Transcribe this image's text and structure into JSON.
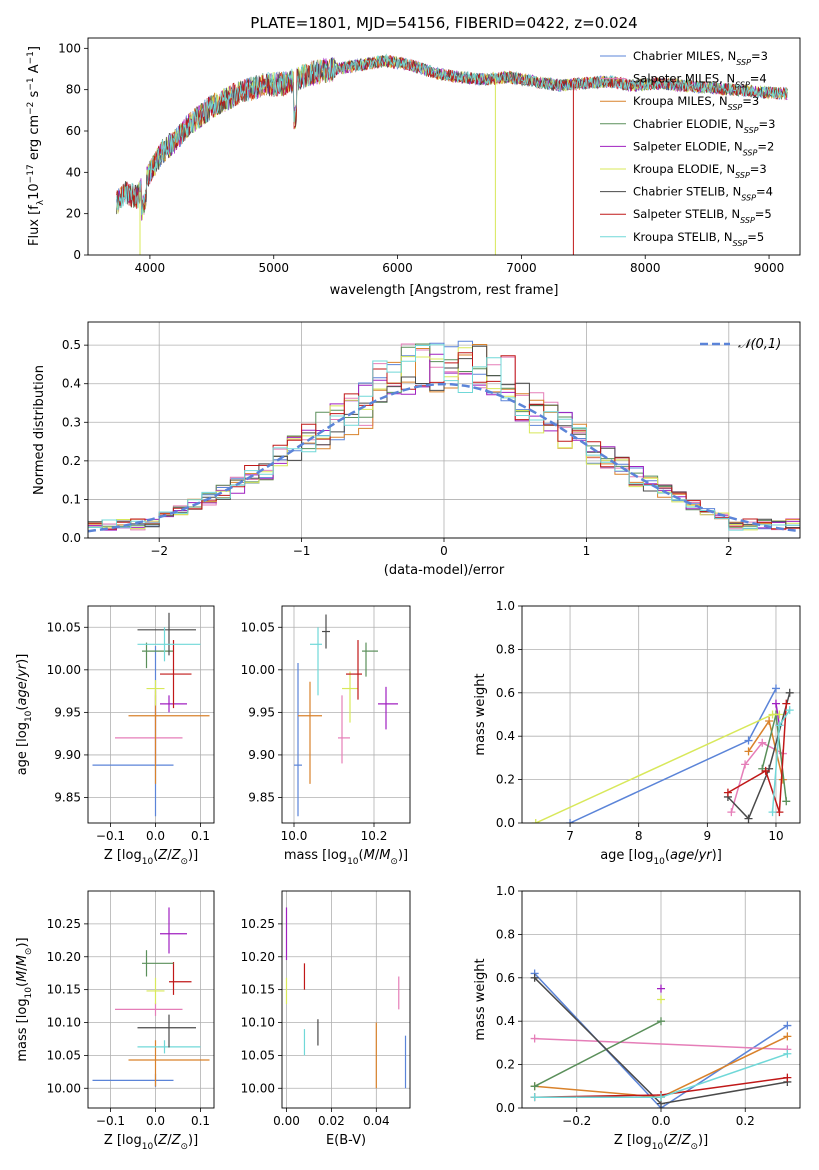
{
  "figure_title": "PLATE=1801, MJD=54156, FIBERID=0422, z=0.024",
  "colors": {
    "Chabrier MILES": "#5b84d8",
    "Salpeter MILES": "#e57eb8",
    "Kroupa MILES": "#d9822b",
    "Chabrier ELODIE": "#5a8f5a",
    "Salpeter ELODIE": "#a020c0",
    "Kroupa ELODIE": "#d8e85a",
    "Chabrier STELIB": "#4a4a4a",
    "Salpeter STELIB": "#c01818",
    "Kroupa STELIB": "#70d8d8"
  },
  "chart_data": [
    {
      "id": "spectrum",
      "type": "line",
      "xlabel": "wavelength [Angstrom, rest frame]",
      "ylabel": "Flux [f_λ 10^-17 erg cm^-2 s^-1 A^-1]",
      "xlim": [
        3500,
        9250
      ],
      "ylim": [
        0,
        105
      ],
      "xticks": [
        4000,
        5000,
        6000,
        7000,
        8000,
        9000
      ],
      "yticks": [
        0,
        20,
        40,
        60,
        80,
        100
      ],
      "legend": [
        "Chabrier MILES, N_SSP=3",
        "Salpeter MILES, N_SSP=4",
        "Kroupa MILES, N_SSP=3",
        "Chabrier ELODIE, N_SSP=3",
        "Salpeter ELODIE, N_SSP=2",
        "Kroupa ELODIE, N_SSP=3",
        "Chabrier STELIB, N_SSP=4",
        "Salpeter STELIB, N_SSP=5",
        "Kroupa STELIB, N_SSP=5"
      ],
      "legend_position": "upper right",
      "continuum": {
        "x": [
          3730,
          3800,
          3900,
          4000,
          4100,
          4200,
          4300,
          4500,
          4700,
          4900,
          5100,
          5300,
          5500,
          5700,
          5900,
          6100,
          6300,
          6500,
          6700,
          6900,
          7100,
          7300,
          7500,
          7700,
          7900,
          8100,
          8300,
          8500,
          8700,
          8900,
          9150
        ],
        "y": [
          25,
          30,
          28,
          40,
          50,
          55,
          62,
          72,
          78,
          82,
          83,
          88,
          90,
          92,
          94,
          92,
          88,
          86,
          85,
          86,
          84,
          82,
          83,
          84,
          82,
          83,
          82,
          81,
          80,
          79,
          78
        ]
      },
      "dropouts": [
        {
          "x": 3920,
          "y": 0,
          "series": "Kroupa ELODIE"
        },
        {
          "x": 6790,
          "y": 0,
          "series": "Kroupa ELODIE"
        },
        {
          "x": 7420,
          "y": 0,
          "series": "Salpeter STELIB"
        }
      ],
      "grid": false
    },
    {
      "id": "residuals",
      "type": "histogram",
      "xlabel": "(data-model)/error",
      "ylabel": "Normed distribution",
      "xlim": [
        -2.5,
        2.5
      ],
      "ylim": [
        0,
        0.56
      ],
      "xticks": [
        -2,
        -1,
        0,
        1,
        2
      ],
      "yticks": [
        0.0,
        0.1,
        0.2,
        0.3,
        0.4,
        0.5
      ],
      "legend": [
        "𝒩(0,1)"
      ],
      "legend_position": "upper right",
      "gaussian": {
        "mean": 0,
        "sigma": 1,
        "style": "dashed",
        "color": "#5b84d8"
      },
      "grid": true
    },
    {
      "id": "age-vs-Z",
      "type": "errorbar",
      "xlabel": "Z [log10(Z/Z⊙)]",
      "ylabel": "age [log10(age/yr)]",
      "xlim": [
        -0.15,
        0.13
      ],
      "ylim": [
        9.82,
        10.075
      ],
      "xticks": [
        -0.1,
        0.0,
        0.1
      ],
      "yticks": [
        9.85,
        9.9,
        9.95,
        10.0,
        10.05
      ],
      "points": [
        {
          "series": "Chabrier MILES",
          "x": 0.0,
          "xerr": [
            0.14,
            0.04
          ],
          "y": 9.888,
          "yerr": [
            0.06,
            0.14
          ]
        },
        {
          "series": "Salpeter MILES",
          "x": 0.0,
          "xerr": [
            0.09,
            0.06
          ],
          "y": 9.92,
          "yerr": [
            0.03,
            0.05
          ]
        },
        {
          "series": "Kroupa MILES",
          "x": 0.0,
          "xerr": [
            0.06,
            0.12
          ],
          "y": 9.946,
          "yerr": [
            0.08,
            0.03
          ]
        },
        {
          "series": "Chabrier ELODIE",
          "x": -0.02,
          "xerr": [
            0.01,
            0.06
          ],
          "y": 10.022,
          "yerr": [
            0.02,
            0.01
          ]
        },
        {
          "series": "Salpeter ELODIE",
          "x": 0.03,
          "xerr": [
            0.02,
            0.04
          ],
          "y": 9.96,
          "yerr": [
            0.01,
            0.01
          ]
        },
        {
          "series": "Kroupa ELODIE",
          "x": 0.0,
          "xerr": [
            0.02,
            0.02
          ],
          "y": 9.978,
          "yerr": [
            0.02,
            0.01
          ]
        },
        {
          "series": "Chabrier STELIB",
          "x": 0.03,
          "xerr": [
            0.07,
            0.06
          ],
          "y": 10.047,
          "yerr": [
            0.03,
            0.02
          ]
        },
        {
          "series": "Salpeter STELIB",
          "x": 0.04,
          "xerr": [
            0.03,
            0.04
          ],
          "y": 9.995,
          "yerr": [
            0.04,
            0.04
          ]
        },
        {
          "series": "Kroupa STELIB",
          "x": 0.02,
          "xerr": [
            0.06,
            0.08
          ],
          "y": 10.03,
          "yerr": [
            0.02,
            0.02
          ]
        }
      ],
      "grid": true
    },
    {
      "id": "age-vs-mass",
      "type": "errorbar",
      "xlabel": "mass [log10(M/M⊙)]",
      "ylabel": "",
      "xlim": [
        9.97,
        10.29
      ],
      "ylim": [
        9.82,
        10.075
      ],
      "xticks": [
        10.0,
        10.2
      ],
      "yticks": [
        9.85,
        9.9,
        9.95,
        10.0,
        10.05
      ],
      "points": [
        {
          "series": "Chabrier MILES",
          "x": 10.01,
          "xerr": [
            0.01,
            0.01
          ],
          "y": 9.888,
          "yerr": [
            0.06,
            0.12
          ]
        },
        {
          "series": "Kroupa MILES",
          "x": 10.04,
          "xerr": [
            0.03,
            0.03
          ],
          "y": 9.946,
          "yerr": [
            0.08,
            0.04
          ]
        },
        {
          "series": "Salpeter MILES",
          "x": 10.12,
          "xerr": [
            0.01,
            0.02
          ],
          "y": 9.92,
          "yerr": [
            0.03,
            0.05
          ]
        },
        {
          "series": "Kroupa STELIB",
          "x": 10.06,
          "xerr": [
            0.02,
            0.01
          ],
          "y": 10.03,
          "yerr": [
            0.06,
            0.02
          ]
        },
        {
          "series": "Chabrier STELIB",
          "x": 10.08,
          "xerr": [
            0.01,
            0.01
          ],
          "y": 10.045,
          "yerr": [
            0.02,
            0.02
          ]
        },
        {
          "series": "Kroupa ELODIE",
          "x": 10.14,
          "xerr": [
            0.02,
            0.02
          ],
          "y": 9.978,
          "yerr": [
            0.04,
            0.02
          ]
        },
        {
          "series": "Salpeter STELIB",
          "x": 10.16,
          "xerr": [
            0.03,
            0.01
          ],
          "y": 9.995,
          "yerr": [
            0.03,
            0.04
          ]
        },
        {
          "series": "Chabrier ELODIE",
          "x": 10.18,
          "xerr": [
            0.01,
            0.03
          ],
          "y": 10.022,
          "yerr": [
            0.03,
            0.01
          ]
        },
        {
          "series": "Salpeter ELODIE",
          "x": 10.23,
          "xerr": [
            0.02,
            0.03
          ],
          "y": 9.96,
          "yerr": [
            0.03,
            0.02
          ]
        }
      ],
      "grid": true
    },
    {
      "id": "weight-vs-age",
      "type": "line",
      "xlabel": "age  [log10(age/yr)]",
      "ylabel": "mass weight",
      "xlim": [
        6.3,
        10.35
      ],
      "ylim": [
        0,
        1
      ],
      "xticks": [
        7,
        8,
        9,
        10
      ],
      "yticks": [
        0.0,
        0.2,
        0.4,
        0.6,
        0.8,
        1.0
      ],
      "series": [
        {
          "name": "Chabrier MILES",
          "x": [
            7.0,
            9.6,
            10.0
          ],
          "y": [
            0.0,
            0.38,
            0.62
          ]
        },
        {
          "name": "Salpeter MILES",
          "x": [
            9.35,
            9.55,
            9.8,
            10.1
          ],
          "y": [
            0.05,
            0.27,
            0.37,
            0.32
          ]
        },
        {
          "name": "Kroupa MILES",
          "x": [
            9.6,
            9.9,
            10.1
          ],
          "y": [
            0.33,
            0.47,
            0.2
          ]
        },
        {
          "name": "Chabrier ELODIE",
          "x": [
            9.8,
            10.0,
            10.15
          ],
          "y": [
            0.25,
            0.5,
            0.1
          ]
        },
        {
          "name": "Salpeter ELODIE",
          "x": [
            10.0,
            10.05
          ],
          "y": [
            0.55,
            0.45
          ]
        },
        {
          "name": "Kroupa ELODIE",
          "x": [
            6.5,
            9.95,
            10.05
          ],
          "y": [
            0.0,
            0.5,
            0.5
          ]
        },
        {
          "name": "Chabrier STELIB",
          "x": [
            9.3,
            9.6,
            9.9,
            10.2
          ],
          "y": [
            0.12,
            0.02,
            0.25,
            0.6
          ]
        },
        {
          "name": "Salpeter STELIB",
          "x": [
            9.3,
            9.85,
            10.05,
            10.15
          ],
          "y": [
            0.14,
            0.24,
            0.05,
            0.55
          ]
        },
        {
          "name": "Kroupa STELIB",
          "x": [
            9.95,
            10.05,
            10.2
          ],
          "y": [
            0.05,
            0.45,
            0.52
          ]
        }
      ],
      "grid": true
    },
    {
      "id": "mass-vs-Z",
      "type": "errorbar",
      "xlabel": "Z [log10(Z/Z⊙)]",
      "ylabel": "mass [log10(M/M⊙)]",
      "xlim": [
        -0.15,
        0.13
      ],
      "ylim": [
        9.97,
        10.3
      ],
      "xticks": [
        -0.1,
        0.0,
        0.1
      ],
      "yticks": [
        10.0,
        10.05,
        10.1,
        10.15,
        10.2,
        10.25
      ],
      "points": [
        {
          "series": "Chabrier MILES",
          "x": 0.0,
          "xerr": [
            0.14,
            0.04
          ],
          "y": 10.012,
          "yerr": [
            0.01,
            0.01
          ]
        },
        {
          "series": "Kroupa MILES",
          "x": 0.0,
          "xerr": [
            0.06,
            0.12
          ],
          "y": 10.043,
          "yerr": [
            0.04,
            0.03
          ]
        },
        {
          "series": "Kroupa STELIB",
          "x": 0.02,
          "xerr": [
            0.06,
            0.08
          ],
          "y": 10.063,
          "yerr": [
            0.01,
            0.01
          ]
        },
        {
          "series": "Chabrier STELIB",
          "x": 0.03,
          "xerr": [
            0.07,
            0.06
          ],
          "y": 10.092,
          "yerr": [
            0.03,
            0.02
          ]
        },
        {
          "series": "Salpeter MILES",
          "x": 0.0,
          "xerr": [
            0.09,
            0.06
          ],
          "y": 10.12,
          "yerr": [
            0.01,
            0.01
          ]
        },
        {
          "series": "Kroupa ELODIE",
          "x": 0.0,
          "xerr": [
            0.02,
            0.02
          ],
          "y": 10.148,
          "yerr": [
            0.02,
            0.02
          ]
        },
        {
          "series": "Salpeter STELIB",
          "x": 0.04,
          "xerr": [
            0.01,
            0.04
          ],
          "y": 10.162,
          "yerr": [
            0.02,
            0.03
          ]
        },
        {
          "series": "Chabrier ELODIE",
          "x": -0.02,
          "xerr": [
            0.01,
            0.06
          ],
          "y": 10.19,
          "yerr": [
            0.02,
            0.02
          ]
        },
        {
          "series": "Salpeter ELODIE",
          "x": 0.03,
          "xerr": [
            0.02,
            0.04
          ],
          "y": 10.235,
          "yerr": [
            0.03,
            0.04
          ]
        }
      ],
      "grid": true
    },
    {
      "id": "mass-vs-EBV",
      "type": "errorbar",
      "xlabel": "E(B-V)",
      "ylabel": "",
      "xlim": [
        -0.002,
        0.055
      ],
      "ylim": [
        9.97,
        10.3
      ],
      "xticks": [
        0.0,
        0.02,
        0.04
      ],
      "yticks": [
        10.0,
        10.05,
        10.1,
        10.15,
        10.2,
        10.25
      ],
      "points": [
        {
          "series": "Salpeter ELODIE",
          "x": 0.0,
          "y": 10.235,
          "yerr": [
            0.04,
            0.04
          ]
        },
        {
          "series": "Kroupa ELODIE",
          "x": 0.0,
          "y": 10.148,
          "yerr": [
            0.02,
            0.02
          ]
        },
        {
          "series": "Kroupa STELIB",
          "x": 0.008,
          "y": 10.07,
          "yerr": [
            0.02,
            0.02
          ]
        },
        {
          "series": "Salpeter STELIB",
          "x": 0.008,
          "y": 10.17,
          "yerr": [
            0.02,
            0.02
          ]
        },
        {
          "series": "Chabrier STELIB",
          "x": 0.014,
          "y": 10.085,
          "yerr": [
            0.02,
            0.02
          ]
        },
        {
          "series": "Kroupa MILES",
          "x": 0.04,
          "y": 10.05,
          "yerr": [
            0.05,
            0.05
          ]
        },
        {
          "series": "Salpeter MILES",
          "x": 0.05,
          "y": 10.14,
          "yerr": [
            0.02,
            0.03
          ]
        },
        {
          "series": "Chabrier MILES",
          "x": 0.053,
          "y": 10.04,
          "yerr": [
            0.04,
            0.04
          ]
        }
      ],
      "grid": true
    },
    {
      "id": "weight-vs-Z",
      "type": "line",
      "xlabel": "Z [log10(Z/Z⊙)]",
      "ylabel": "mass weight",
      "xlim": [
        -0.33,
        0.33
      ],
      "ylim": [
        0,
        1
      ],
      "xticks": [
        -0.2,
        0.0,
        0.2
      ],
      "yticks": [
        0.0,
        0.2,
        0.4,
        0.6,
        0.8,
        1.0
      ],
      "series": [
        {
          "name": "Chabrier MILES",
          "x": [
            -0.3,
            0.0,
            0.3
          ],
          "y": [
            0.62,
            0.0,
            0.38
          ]
        },
        {
          "name": "Salpeter MILES",
          "x": [
            -0.3,
            0.3
          ],
          "y": [
            0.32,
            0.27
          ]
        },
        {
          "name": "Kroupa MILES",
          "x": [
            -0.3,
            0.0,
            0.3
          ],
          "y": [
            0.1,
            0.05,
            0.33
          ]
        },
        {
          "name": "Chabrier ELODIE",
          "x": [
            -0.3,
            0.0
          ],
          "y": [
            0.1,
            0.4
          ]
        },
        {
          "name": "Salpeter ELODIE",
          "x": [
            0.0
          ],
          "y": [
            0.55
          ]
        },
        {
          "name": "Kroupa ELODIE",
          "x": [
            0.0
          ],
          "y": [
            0.5
          ]
        },
        {
          "name": "Chabrier STELIB",
          "x": [
            -0.3,
            0.0,
            0.3
          ],
          "y": [
            0.6,
            0.02,
            0.12
          ]
        },
        {
          "name": "Salpeter STELIB",
          "x": [
            -0.3,
            0.0,
            0.3
          ],
          "y": [
            0.05,
            0.06,
            0.14
          ]
        },
        {
          "name": "Kroupa STELIB",
          "x": [
            -0.3,
            0.0,
            0.3
          ],
          "y": [
            0.05,
            0.05,
            0.25
          ]
        }
      ],
      "grid": true
    }
  ]
}
